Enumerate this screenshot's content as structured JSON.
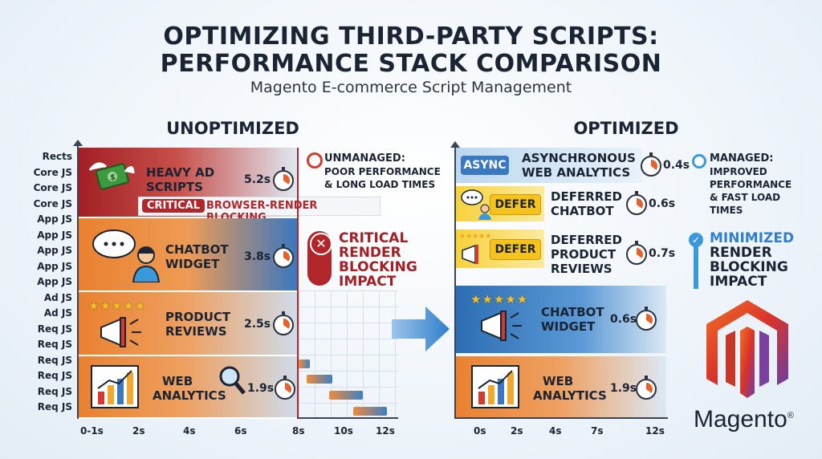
{
  "header": {
    "title_line1": "OPTIMIZING THIRD-PARTY SCRIPTS:",
    "title_line2": "PERFORMANCE STACK COMPARISON",
    "subtitle": "Magento E-commerce Script Management"
  },
  "unoptimized": {
    "heading": "UNOPTIMIZED",
    "y_labels": [
      "Rects",
      "Core JS",
      "Core JS",
      "Core JS",
      "App JS",
      "App JS",
      "App JS",
      "App JS",
      "App JS",
      "Ad JS",
      "Ad JS",
      "Req JS",
      "Req JS",
      "Req JS",
      "Req JS",
      "Req JS",
      "Req JS"
    ],
    "x_labels": [
      "0-1s",
      "2s",
      "4s",
      "6s",
      "8s",
      "10s",
      "12s"
    ],
    "rows": [
      {
        "label_line1": "HEAVY AD",
        "label_line2": "SCRIPTS",
        "time": "5.2s",
        "icon": "money-wings-icon"
      },
      {
        "label_line1": "CHATBOT",
        "label_line2": "WIDGET",
        "time": "3.8s",
        "icon": "chat-person-icon"
      },
      {
        "label_line1": "PRODUCT",
        "label_line2": "REVIEWS",
        "time": "2.5s",
        "icon": "megaphone-stars-icon"
      },
      {
        "label_line1": "WEB",
        "label_line2": "ANALYTICS",
        "time": "1.9s",
        "icon": "chart-magnifier-icon"
      }
    ],
    "critical_badge": "CRITICAL",
    "critical_note": "BROWSER-RENDER BLOCKING",
    "legend_title": "UNMANAGED:",
    "legend_line1": "POOR PERFORMANCE",
    "legend_line2": "& LONG LOAD TIMES",
    "impact_line1": "CRITICAL",
    "impact_line2": "RENDER",
    "impact_line3": "BLOCKING",
    "impact_line4": "IMPACT"
  },
  "optimized": {
    "heading": "OPTIMIZED",
    "x_labels": [
      "0s",
      "2s",
      "4s",
      "7s",
      "12s"
    ],
    "top_rows": [
      {
        "tag": "ASYNC",
        "label_line1": "ASYNCHRONOUS",
        "label_line2": "WEB ANALYTICS",
        "label_line3": "",
        "time": "0.4s"
      },
      {
        "tag": "DEFER",
        "label_line1": "DEFERRED",
        "label_line2": "CHATBOT",
        "label_line3": "",
        "time": "0.6s"
      },
      {
        "tag": "DEFER",
        "label_line1": "DEFERRED",
        "label_line2": "PRODUCT",
        "label_line3": "REVIEWS",
        "time": "0.7s"
      }
    ],
    "bottom_rows": [
      {
        "label_line1": "CHATBOT",
        "label_line2": "WIDGET",
        "time": "0.6s"
      },
      {
        "label_line1": "WEB",
        "label_line2": "ANALYTICS",
        "time": "1.9s"
      }
    ],
    "legend_title": "MANAGED:",
    "legend_line1": "IMPROVED",
    "legend_line2": "PERFORMANCE",
    "legend_line3": "& FAST LOAD",
    "legend_line4": "TIMES",
    "impact_line1": "MINIMIZED",
    "impact_line2": "RENDER",
    "impact_line3": "BLOCKING",
    "impact_line4": "IMPACT"
  },
  "brand": {
    "name": "Magento",
    "mark": "®"
  },
  "colors": {
    "red": "#b0262a",
    "orange": "#e9812f",
    "blue": "#3a78bf",
    "yellow": "#f6d23c",
    "dark": "#1b2433"
  }
}
